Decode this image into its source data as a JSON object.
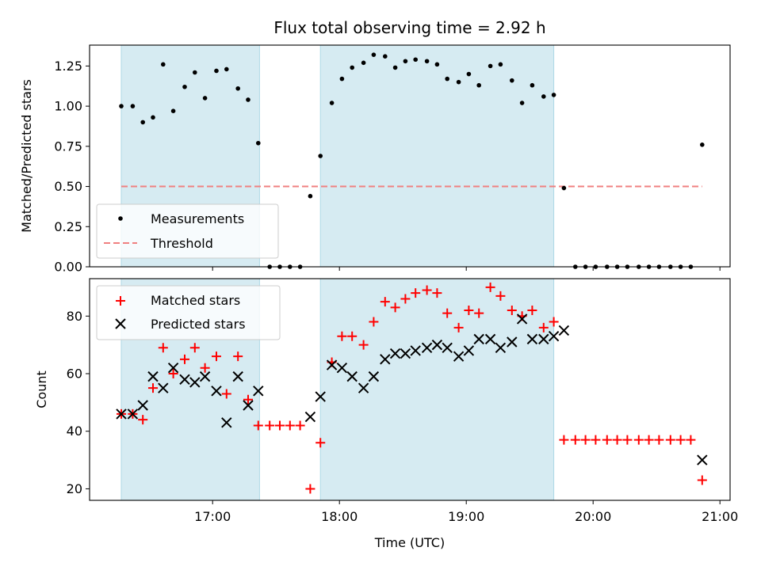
{
  "colors": {
    "shade": "#add8e6",
    "threshold": "#f08080",
    "matched": "#ff0000",
    "predicted": "#000000",
    "measurement": "#000000"
  },
  "chart_data": [
    {
      "type": "scatter",
      "title": "Flux total observing time = 2.92 h",
      "xlabel": "",
      "ylabel": "Matched/Predicted stars",
      "xlim": [
        16.03,
        21.08
      ],
      "ylim": [
        0.0,
        1.38
      ],
      "yticks": [
        0.0,
        0.25,
        0.5,
        0.75,
        1.0,
        1.25
      ],
      "ytick_labels": [
        "0.00",
        "0.25",
        "0.50",
        "0.75",
        "1.00",
        "1.25"
      ],
      "shaded_spans": [
        [
          16.28,
          17.37
        ],
        [
          17.85,
          19.69
        ]
      ],
      "legend": {
        "placement": "lower-left",
        "entries": [
          "Measurements",
          "Threshold"
        ]
      },
      "series": [
        {
          "name": "Measurements",
          "x": [
            16.28,
            16.37,
            16.45,
            16.53,
            16.61,
            16.69,
            16.78,
            16.86,
            16.94,
            17.03,
            17.11,
            17.2,
            17.28,
            17.36,
            17.45,
            17.53,
            17.61,
            17.69,
            17.77,
            17.85,
            17.94,
            18.02,
            18.1,
            18.19,
            18.27,
            18.36,
            18.44,
            18.52,
            18.6,
            18.69,
            18.77,
            18.85,
            18.94,
            19.02,
            19.1,
            19.19,
            19.27,
            19.36,
            19.44,
            19.52,
            19.61,
            19.69,
            19.77,
            19.86,
            19.94,
            20.02,
            20.11,
            20.19,
            20.27,
            20.36,
            20.44,
            20.52,
            20.61,
            20.69,
            20.77,
            20.86
          ],
          "y": [
            1.0,
            1.0,
            0.9,
            0.93,
            1.26,
            0.97,
            1.12,
            1.21,
            1.05,
            1.22,
            1.23,
            1.11,
            1.04,
            0.77,
            0.0,
            0.0,
            0.0,
            0.0,
            0.44,
            0.69,
            1.02,
            1.17,
            1.24,
            1.27,
            1.32,
            1.31,
            1.24,
            1.28,
            1.29,
            1.28,
            1.26,
            1.17,
            1.15,
            1.2,
            1.13,
            1.25,
            1.26,
            1.16,
            1.02,
            1.13,
            1.06,
            1.07,
            0.49,
            0.0,
            0.0,
            0.0,
            0.0,
            0.0,
            0.0,
            0.0,
            0.0,
            0.0,
            0.0,
            0.0,
            0.0,
            0.76
          ]
        },
        {
          "name": "Threshold",
          "x": [
            16.28,
            20.86
          ],
          "y": [
            0.5,
            0.5
          ]
        }
      ]
    },
    {
      "type": "scatter",
      "title": "",
      "xlabel": "Time (UTC)",
      "ylabel": "Count",
      "xlim": [
        16.03,
        21.08
      ],
      "ylim": [
        16.0,
        93.0
      ],
      "yticks": [
        20,
        40,
        60,
        80
      ],
      "ytick_labels": [
        "20",
        "40",
        "60",
        "80"
      ],
      "xticks": [
        17,
        18,
        19,
        20,
        21
      ],
      "xtick_labels": [
        "17:00",
        "18:00",
        "19:00",
        "20:00",
        "21:00"
      ],
      "shaded_spans": [
        [
          16.28,
          17.37
        ],
        [
          17.85,
          19.69
        ]
      ],
      "legend": {
        "placement": "upper-left",
        "entries": [
          "Matched stars",
          "Predicted stars"
        ]
      },
      "series": [
        {
          "name": "Matched stars",
          "x": [
            16.28,
            16.37,
            16.45,
            16.53,
            16.61,
            16.69,
            16.78,
            16.86,
            16.94,
            17.03,
            17.11,
            17.2,
            17.28,
            17.36,
            17.45,
            17.53,
            17.61,
            17.69,
            17.77,
            17.85,
            17.94,
            18.02,
            18.1,
            18.19,
            18.27,
            18.36,
            18.44,
            18.52,
            18.6,
            18.69,
            18.77,
            18.85,
            18.94,
            19.02,
            19.1,
            19.19,
            19.27,
            19.36,
            19.44,
            19.52,
            19.61,
            19.69,
            19.77,
            19.86,
            19.94,
            20.02,
            20.11,
            20.19,
            20.27,
            20.36,
            20.44,
            20.52,
            20.61,
            20.69,
            20.77,
            20.86
          ],
          "y": [
            46,
            46,
            44,
            55,
            69,
            60,
            65,
            69,
            62,
            66,
            53,
            66,
            51,
            42,
            42,
            42,
            42,
            42,
            20,
            36,
            64,
            73,
            73,
            70,
            78,
            85,
            83,
            86,
            88,
            89,
            88,
            81,
            76,
            82,
            81,
            90,
            87,
            82,
            80,
            82,
            76,
            78,
            37,
            37,
            37,
            37,
            37,
            37,
            37,
            37,
            37,
            37,
            37,
            37,
            37,
            23
          ]
        },
        {
          "name": "Predicted stars",
          "x": [
            16.28,
            16.37,
            16.45,
            16.53,
            16.61,
            16.69,
            16.78,
            16.86,
            16.94,
            17.03,
            17.11,
            17.2,
            17.28,
            17.36,
            17.77,
            17.85,
            17.94,
            18.02,
            18.1,
            18.19,
            18.27,
            18.36,
            18.44,
            18.52,
            18.6,
            18.69,
            18.77,
            18.85,
            18.94,
            19.02,
            19.1,
            19.19,
            19.27,
            19.36,
            19.44,
            19.52,
            19.61,
            19.69,
            19.77,
            20.86
          ],
          "y": [
            46,
            46,
            49,
            59,
            55,
            62,
            58,
            57,
            59,
            54,
            43,
            59,
            49,
            54,
            45,
            52,
            63,
            62,
            59,
            55,
            59,
            65,
            67,
            67,
            68,
            69,
            70,
            69,
            66,
            68,
            72,
            72,
            69,
            71,
            79,
            72,
            72,
            73,
            75,
            30
          ]
        }
      ]
    }
  ]
}
